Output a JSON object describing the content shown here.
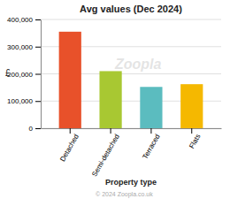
{
  "chart_data": {
    "type": "bar",
    "title": "Avg values (Dec 2024)",
    "categories": [
      "Detached",
      "Semi-detached",
      "Terraced",
      "Flats"
    ],
    "values": [
      355000,
      210000,
      152000,
      162000
    ],
    "colors": [
      "#e8512a",
      "#a8c832",
      "#5bbcbf",
      "#f5b800"
    ],
    "xlabel": "Property type",
    "ylabel": "£",
    "ylim": [
      0,
      400000
    ],
    "yticks": [
      0,
      {
        "value": 100000,
        "label": "100,000"
      },
      {
        "value": 200000,
        "label": "200,000"
      },
      {
        "value": 300000,
        "label": "300,000"
      },
      {
        "value": 400000,
        "label": "400,000"
      }
    ],
    "grid": true,
    "annotations": [
      "Zoopla",
      "© 2024 Zoopla.co.uk"
    ]
  }
}
